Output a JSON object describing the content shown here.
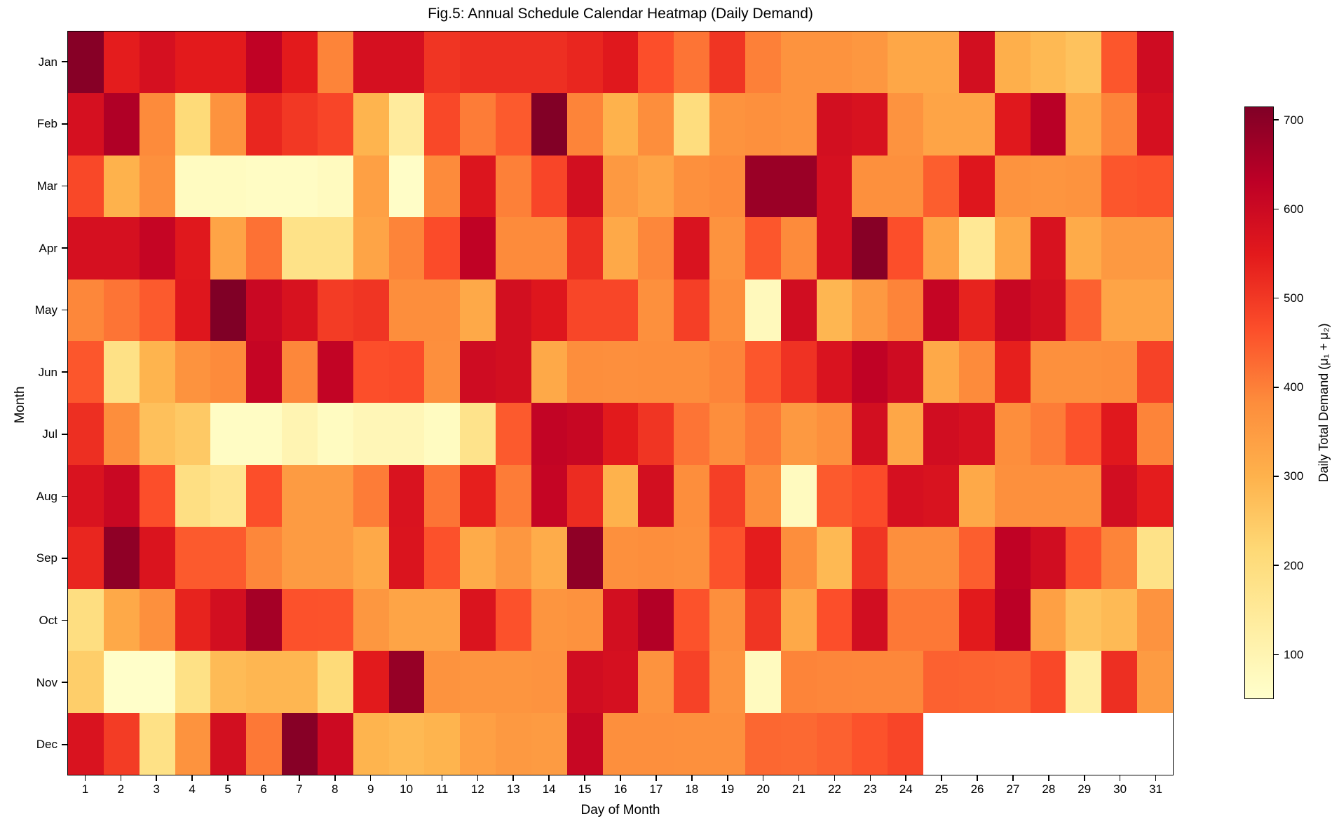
{
  "title": "Fig.5: Annual Schedule Calendar Heatmap (Daily Demand)",
  "axes": {
    "x_label": "Day of Month",
    "y_label": "Month",
    "x_ticks": [
      "1",
      "2",
      "3",
      "4",
      "5",
      "6",
      "7",
      "8",
      "9",
      "10",
      "11",
      "12",
      "13",
      "14",
      "15",
      "16",
      "17",
      "18",
      "19",
      "20",
      "21",
      "22",
      "23",
      "24",
      "25",
      "26",
      "27",
      "28",
      "29",
      "30",
      "31"
    ],
    "y_ticks": [
      "Jan",
      "Feb",
      "Mar",
      "Apr",
      "May",
      "Jun",
      "Jul",
      "Aug",
      "Sep",
      "Oct",
      "Nov",
      "Dec"
    ]
  },
  "colorbar": {
    "label": "Daily Total Demand (μ₁ + μ₂)",
    "ticks": [
      100,
      200,
      300,
      400,
      500,
      600,
      700
    ],
    "vmin": 50,
    "vmax": 715,
    "colormap_name": "YlOrRd",
    "colormap_anchors": [
      [
        255,
        255,
        204
      ],
      [
        255,
        237,
        160
      ],
      [
        254,
        217,
        118
      ],
      [
        254,
        178,
        76
      ],
      [
        253,
        141,
        60
      ],
      [
        252,
        78,
        42
      ],
      [
        227,
        26,
        28
      ],
      [
        189,
        0,
        38
      ],
      [
        128,
        0,
        38
      ]
    ],
    "missing_color": "#ffffff"
  },
  "chart_data": {
    "type": "heatmap",
    "title": "Fig.5: Annual Schedule Calendar Heatmap (Daily Demand)",
    "xlabel": "Day of Month",
    "ylabel": "Month",
    "rows": [
      "Jan",
      "Feb",
      "Mar",
      "Apr",
      "May",
      "Jun",
      "Jul",
      "Aug",
      "Sep",
      "Oct",
      "Nov",
      "Dec"
    ],
    "cols": [
      1,
      2,
      3,
      4,
      5,
      6,
      7,
      8,
      9,
      10,
      11,
      12,
      13,
      14,
      15,
      16,
      17,
      18,
      19,
      20,
      21,
      22,
      23,
      24,
      25,
      26,
      27,
      28,
      29,
      30,
      31
    ],
    "value_range": [
      50,
      715
    ],
    "legend_position": "right",
    "values": [
      [
        705,
        545,
        580,
        548,
        548,
        625,
        548,
        395,
        580,
        580,
        505,
        515,
        515,
        515,
        530,
        555,
        465,
        415,
        505,
        400,
        370,
        370,
        360,
        325,
        325,
        585,
        305,
        285,
        265,
        455,
        595
      ],
      [
        580,
        650,
        385,
        210,
        370,
        530,
        500,
        480,
        295,
        140,
        475,
        405,
        450,
        712,
        395,
        300,
        380,
        200,
        370,
        375,
        370,
        585,
        575,
        368,
        330,
        330,
        555,
        638,
        320,
        395,
        580
      ],
      [
        475,
        300,
        375,
        70,
        70,
        65,
        65,
        75,
        340,
        60,
        385,
        565,
        400,
        480,
        585,
        355,
        330,
        375,
        385,
        680,
        680,
        580,
        375,
        375,
        445,
        560,
        370,
        365,
        370,
        455,
        460
      ],
      [
        580,
        580,
        615,
        555,
        330,
        420,
        180,
        180,
        330,
        395,
        470,
        625,
        385,
        385,
        515,
        320,
        390,
        570,
        370,
        455,
        385,
        580,
        705,
        465,
        330,
        155,
        320,
        575,
        315,
        355,
        355
      ],
      [
        390,
        415,
        450,
        560,
        715,
        605,
        575,
        495,
        505,
        380,
        380,
        320,
        585,
        560,
        478,
        478,
        375,
        490,
        380,
        80,
        590,
        290,
        355,
        395,
        615,
        535,
        610,
        585,
        440,
        330,
        330
      ],
      [
        455,
        185,
        295,
        370,
        385,
        615,
        390,
        620,
        465,
        470,
        378,
        595,
        585,
        320,
        380,
        378,
        380,
        380,
        395,
        455,
        510,
        570,
        625,
        595,
        320,
        385,
        540,
        375,
        375,
        380,
        485
      ],
      [
        515,
        380,
        270,
        250,
        65,
        65,
        100,
        70,
        90,
        90,
        70,
        175,
        450,
        620,
        610,
        550,
        505,
        415,
        380,
        410,
        355,
        375,
        585,
        325,
        590,
        578,
        380,
        405,
        460,
        555,
        395
      ],
      [
        570,
        605,
        465,
        190,
        165,
        465,
        350,
        350,
        405,
        570,
        415,
        540,
        405,
        615,
        520,
        300,
        585,
        380,
        490,
        380,
        75,
        450,
        470,
        580,
        572,
        320,
        375,
        375,
        375,
        588,
        545
      ],
      [
        530,
        695,
        568,
        450,
        450,
        390,
        352,
        352,
        320,
        568,
        462,
        315,
        360,
        312,
        695,
        375,
        380,
        375,
        460,
        545,
        380,
        285,
        505,
        378,
        378,
        445,
        625,
        590,
        460,
        395,
        180
      ],
      [
        195,
        320,
        375,
        535,
        585,
        665,
        462,
        460,
        360,
        330,
        330,
        568,
        462,
        365,
        372,
        585,
        645,
        460,
        378,
        505,
        320,
        465,
        588,
        410,
        410,
        550,
        635,
        340,
        265,
        282,
        368
      ],
      [
        240,
        55,
        55,
        185,
        280,
        290,
        290,
        210,
        550,
        685,
        370,
        365,
        365,
        368,
        590,
        580,
        370,
        485,
        368,
        75,
        395,
        392,
        390,
        390,
        440,
        438,
        435,
        475,
        125,
        515,
        350
      ],
      [
        570,
        495,
        185,
        370,
        585,
        410,
        705,
        600,
        295,
        285,
        295,
        340,
        355,
        352,
        610,
        378,
        378,
        375,
        375,
        432,
        430,
        440,
        460,
        480,
        null,
        null,
        null,
        null,
        null,
        null,
        null
      ]
    ]
  }
}
